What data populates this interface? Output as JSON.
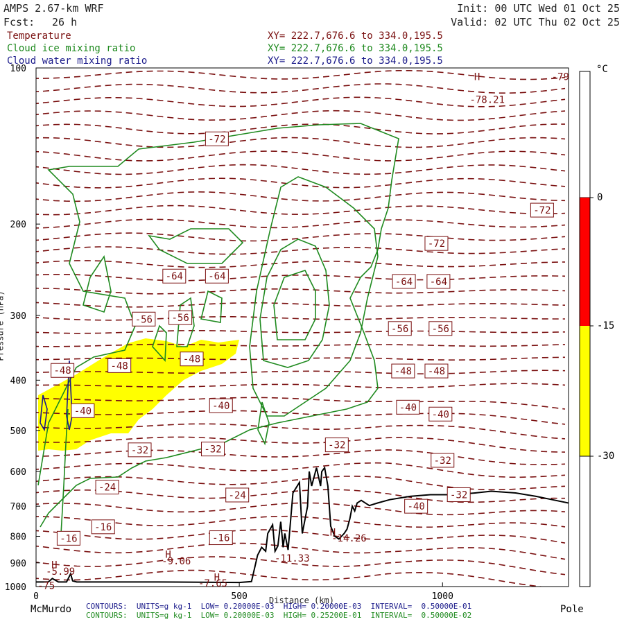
{
  "header": {
    "model": "AMPS 2.67-km WRF",
    "fcst_label": "Fcst:",
    "fcst_value": "26 h",
    "init": "Init: 00 UTC Wed 01 Oct 25",
    "valid": "Valid: 02 UTC Thu 02 Oct 25"
  },
  "fields": [
    {
      "name": "Temperature",
      "xy": "XY= 222.7,676.6 to 334.0,195.5",
      "color": "#7a1010"
    },
    {
      "name": "Cloud ice mixing ratio",
      "xy": "XY= 222.7,676.6 to 334.0,195.5",
      "color": "#1f8a1f"
    },
    {
      "name": "Cloud water mixing ratio",
      "xy": "XY= 222.7,676.6 to 334.0,195.5",
      "color": "#1a1a8a"
    }
  ],
  "colorbar": {
    "unit": "°C",
    "labels": [
      "0",
      "-15",
      "-30"
    ],
    "colors": {
      "red": "#ff0000",
      "yellow": "#ffff00"
    }
  },
  "footer": {
    "left_end": "McMurdo",
    "right_end": "Pole",
    "contours_water": "CONTOURS:  UNITS=g kg-1  LOW= 0.20000E-03  HIGH= 0.20000E-03  INTERVAL=  0.50000E-01",
    "contours_ice": "CONTOURS:  UNITS=g kg-1  LOW= 0.20000E-03  HIGH= 0.25200E-01  INTERVAL=  0.50000E-02"
  },
  "chart_data": {
    "type": "cross-section",
    "xlabel": "Distance (km)",
    "ylabel": "Pressure (hPa)",
    "x_ticks": [
      0,
      500,
      1000
    ],
    "x_range": [
      0,
      1310
    ],
    "y_ticks": [
      100,
      200,
      300,
      400,
      500,
      600,
      700,
      800,
      900,
      1000
    ],
    "y_range": [
      1000,
      100
    ],
    "y_scale": "log",
    "temperature_labels": [
      {
        "text": "-72",
        "x": 445,
        "p": 137
      },
      {
        "text": "-72",
        "x": 985,
        "p": 218
      },
      {
        "text": "-72",
        "x": 1245,
        "p": 188
      },
      {
        "text": "-64",
        "x": 340,
        "p": 252
      },
      {
        "text": "-64",
        "x": 445,
        "p": 252
      },
      {
        "text": "-64",
        "x": 905,
        "p": 258
      },
      {
        "text": "-64",
        "x": 990,
        "p": 258
      },
      {
        "text": "-56",
        "x": 265,
        "p": 305
      },
      {
        "text": "-56",
        "x": 355,
        "p": 303
      },
      {
        "text": "-56",
        "x": 895,
        "p": 318
      },
      {
        "text": "-56",
        "x": 995,
        "p": 318
      },
      {
        "text": "-48",
        "x": 65,
        "p": 383
      },
      {
        "text": "-48",
        "x": 205,
        "p": 375
      },
      {
        "text": "-48",
        "x": 383,
        "p": 364
      },
      {
        "text": "-48",
        "x": 903,
        "p": 384
      },
      {
        "text": "-48",
        "x": 985,
        "p": 384
      },
      {
        "text": "-40",
        "x": 115,
        "p": 458
      },
      {
        "text": "-40",
        "x": 455,
        "p": 448
      },
      {
        "text": "-40",
        "x": 915,
        "p": 451
      },
      {
        "text": "-40",
        "x": 995,
        "p": 465
      },
      {
        "text": "-32",
        "x": 255,
        "p": 545
      },
      {
        "text": "-32",
        "x": 435,
        "p": 543
      },
      {
        "text": "-32",
        "x": 740,
        "p": 533
      },
      {
        "text": "-32",
        "x": 1000,
        "p": 571
      },
      {
        "text": "-32",
        "x": 1040,
        "p": 665
      },
      {
        "text": "-24",
        "x": 175,
        "p": 643
      },
      {
        "text": "-24",
        "x": 495,
        "p": 666
      },
      {
        "text": "-40",
        "x": 935,
        "p": 700
      },
      {
        "text": "-16",
        "x": 165,
        "p": 767
      },
      {
        "text": "-16",
        "x": 80,
        "p": 807
      },
      {
        "text": "-16",
        "x": 455,
        "p": 805
      }
    ],
    "extrema": [
      {
        "text": "-78.21",
        "x": 1110,
        "p": 115
      },
      {
        "text": "-79",
        "x": 1290,
        "p": 104
      },
      {
        "text": "-14.26",
        "x": 770,
        "p": 806
      },
      {
        "text": "-11.33",
        "x": 630,
        "p": 882
      },
      {
        "text": "-9.06",
        "x": 345,
        "p": 893
      },
      {
        "text": "-5.99",
        "x": 60,
        "p": 935
      },
      {
        "text": "-7.65",
        "x": 435,
        "p": 984
      },
      {
        "text": "-75",
        "x": 25,
        "p": 995
      }
    ],
    "highs": [
      {
        "text": "H",
        "x": 1085,
        "p": 104
      },
      {
        "text": "H",
        "x": 730,
        "p": 785
      },
      {
        "text": "H",
        "x": 325,
        "p": 867
      },
      {
        "text": "H",
        "x": 45,
        "p": 908
      },
      {
        "text": "H",
        "x": 445,
        "p": 960
      }
    ],
    "terrain": [
      [
        0,
        980
      ],
      [
        30,
        980
      ],
      [
        40,
        965
      ],
      [
        55,
        980
      ],
      [
        75,
        980
      ],
      [
        85,
        945
      ],
      [
        90,
        975
      ],
      [
        100,
        980
      ],
      [
        300,
        980
      ],
      [
        500,
        982
      ],
      [
        530,
        978
      ],
      [
        545,
        870
      ],
      [
        555,
        840
      ],
      [
        565,
        855
      ],
      [
        570,
        790
      ],
      [
        582,
        760
      ],
      [
        588,
        855
      ],
      [
        595,
        835
      ],
      [
        602,
        750
      ],
      [
        608,
        840
      ],
      [
        612,
        790
      ],
      [
        620,
        850
      ],
      [
        632,
        660
      ],
      [
        648,
        630
      ],
      [
        655,
        790
      ],
      [
        668,
        700
      ],
      [
        672,
        600
      ],
      [
        678,
        640
      ],
      [
        690,
        590
      ],
      [
        700,
        640
      ],
      [
        703,
        600
      ],
      [
        710,
        590
      ],
      [
        718,
        640
      ],
      [
        725,
        765
      ],
      [
        735,
        800
      ],
      [
        745,
        810
      ],
      [
        758,
        790
      ],
      [
        765,
        775
      ],
      [
        772,
        740
      ],
      [
        778,
        700
      ],
      [
        784,
        715
      ],
      [
        790,
        690
      ],
      [
        800,
        682
      ],
      [
        820,
        698
      ],
      [
        840,
        690
      ],
      [
        870,
        680
      ],
      [
        920,
        670
      ],
      [
        970,
        665
      ],
      [
        1030,
        665
      ],
      [
        1080,
        660
      ],
      [
        1120,
        655
      ],
      [
        1180,
        660
      ],
      [
        1230,
        670
      ],
      [
        1270,
        680
      ],
      [
        1310,
        690
      ]
    ]
  }
}
